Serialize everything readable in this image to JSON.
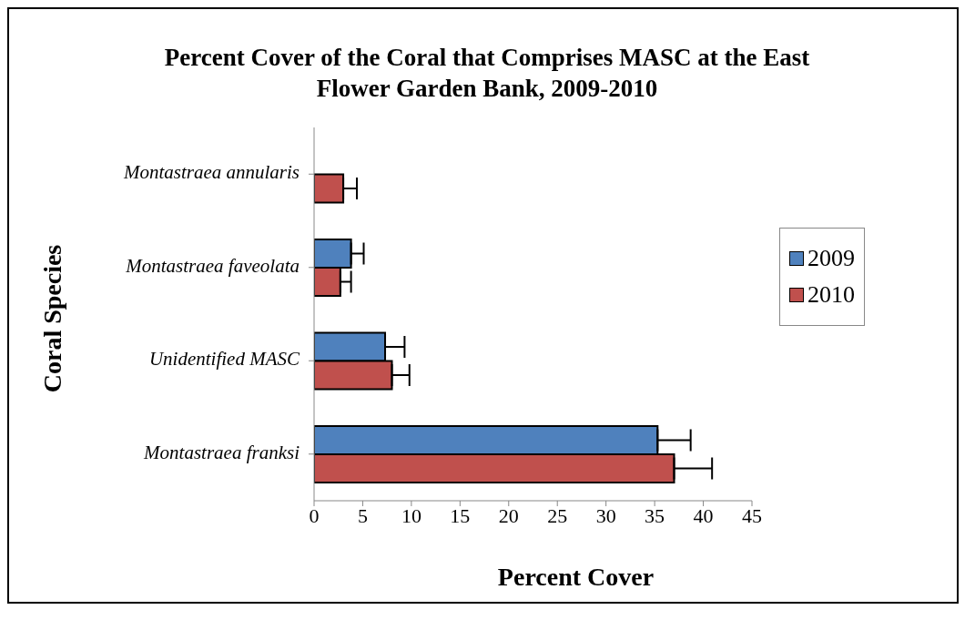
{
  "chart_data": {
    "type": "bar",
    "orientation": "horizontal",
    "title": "Percent Cover of the Coral that Comprises MASC at the East Flower Garden Bank, 2009-2010",
    "xlabel": "Percent Cover",
    "ylabel": "Coral Species",
    "categories": [
      "Montastraea annularis",
      "Montastraea faveolata",
      "Unidentified MASC",
      "Montastraea franksi"
    ],
    "series": [
      {
        "name": "2009",
        "color": "#4f81bd",
        "values": [
          0,
          3.8,
          7.3,
          35.3
        ],
        "errors": [
          null,
          [
            3.8,
            5.1
          ],
          [
            7.3,
            9.3
          ],
          [
            35.3,
            38.7
          ]
        ]
      },
      {
        "name": "2010",
        "color": "#c0504d",
        "values": [
          3.0,
          2.7,
          8.0,
          37.0
        ],
        "errors": [
          [
            3.0,
            4.4
          ],
          [
            2.7,
            3.8
          ],
          [
            8.0,
            9.8
          ],
          [
            37.0,
            40.9
          ]
        ]
      }
    ],
    "xlim": [
      0,
      45
    ],
    "xticks": [
      0,
      5,
      10,
      15,
      20,
      25,
      30,
      35,
      40,
      45
    ],
    "grid": false,
    "legend": "top right"
  }
}
